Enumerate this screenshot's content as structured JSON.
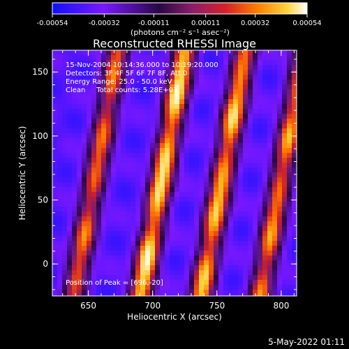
{
  "chart_data": {
    "type": "heatmap",
    "title": "Reconstructed RHESSI Image",
    "xlabel": "Heliocentric X (arcsec)",
    "ylabel": "Heliocentric Y (arcsec)",
    "xlim": [
      622,
      812
    ],
    "ylim": [
      -25,
      167
    ],
    "x_ticks": [
      650,
      700,
      750,
      800
    ],
    "y_ticks": [
      0,
      50,
      100,
      150
    ],
    "colorbar": {
      "range": [
        -0.00054,
        0.00054
      ],
      "tick_labels": [
        "-0.00054",
        "-0.00032",
        "-0.00011",
        "0.00011",
        "0.00032",
        "0.00054"
      ],
      "unit_label": "(photons cm⁻² s⁻¹ asec⁻²)",
      "colors": [
        "#1010ff",
        "#7a18ff",
        "#3a0a60",
        "#6b1a9a",
        "#c0202a",
        "#ff6a00",
        "#ffb400",
        "#fff7c8"
      ]
    },
    "annotations": [
      "15-Nov-2004 10:14:36.000 to 10:19:20.000",
      "Detectors: 3F 4F 5F 6F 7F 8F, Att 0",
      "Energy Range: 25.0 - 50.0 keV",
      "Clean     Total counts: 5.28E+03"
    ],
    "peak_label": "Position of Peak = [696,-20]",
    "stripe_pattern": {
      "description_value": "diagonal fringe ridges",
      "ridge_x_at_y0": [
        643,
        695,
        742,
        788
      ],
      "ridge_slope_x_per_y": 0.18,
      "ridge_peak_values": [
        0.0003,
        0.00054,
        0.00046,
        0.00036
      ],
      "trough_value": -0.0004
    }
  },
  "footer": {
    "date": "5-May-2022 01:11"
  }
}
